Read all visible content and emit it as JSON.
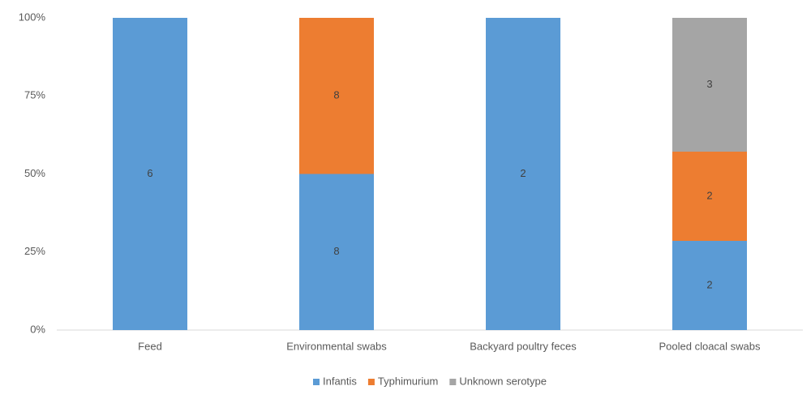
{
  "chart_data": {
    "type": "bar",
    "stacked": "percent",
    "categories": [
      "Feed",
      "Environmental swabs",
      "Backyard poultry feces",
      "Pooled cloacal swabs"
    ],
    "series": [
      {
        "name": "Infantis",
        "color": "#5b9bd5",
        "values": [
          6,
          8,
          2,
          2
        ]
      },
      {
        "name": "Typhimurium",
        "color": "#ed7d31",
        "values": [
          null,
          8,
          null,
          2
        ]
      },
      {
        "name": "Unknown serotype",
        "color": "#a5a5a5",
        "values": [
          null,
          null,
          null,
          3
        ]
      }
    ],
    "ylim": [
      0,
      100
    ],
    "yticks": [
      {
        "value": 0,
        "label": "0%"
      },
      {
        "value": 25,
        "label": "25%"
      },
      {
        "value": 50,
        "label": "50%"
      },
      {
        "value": 75,
        "label": "75%"
      },
      {
        "value": 100,
        "label": "100%"
      }
    ],
    "grid": false,
    "legend": "bottom"
  }
}
